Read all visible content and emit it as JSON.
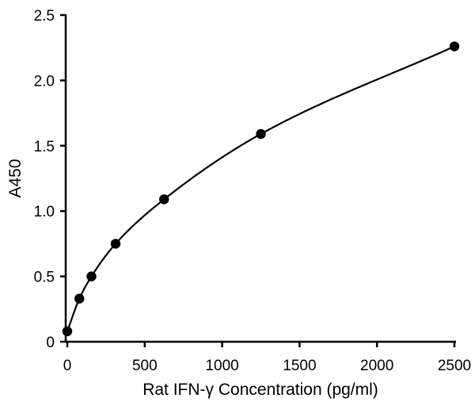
{
  "chart_data": {
    "type": "scatter",
    "title": "",
    "xlabel": "Rat IFN-γ Concentration (pg/ml)",
    "ylabel": "A450",
    "xlim": [
      0,
      2500
    ],
    "ylim": [
      0,
      2.5
    ],
    "x_ticks": [
      0,
      500,
      1000,
      1500,
      2000,
      2500
    ],
    "x_tick_labels": [
      "0",
      "500",
      "1000",
      "1500",
      "2000",
      "2500"
    ],
    "y_ticks": [
      0,
      0.5,
      1.0,
      1.5,
      2.0,
      2.5
    ],
    "y_tick_labels": [
      "0",
      "0.5",
      "1.0",
      "1.5",
      "2.0",
      "2.5"
    ],
    "grid": false,
    "legend": "none",
    "marker_color": "#000000",
    "line_color": "#000000",
    "fit_curve": "smooth",
    "series": [
      {
        "x": [
          0,
          78,
          156,
          312,
          625,
          1250,
          2500
        ],
        "y": [
          0.08,
          0.33,
          0.5,
          0.75,
          1.09,
          1.59,
          2.26
        ]
      }
    ]
  }
}
